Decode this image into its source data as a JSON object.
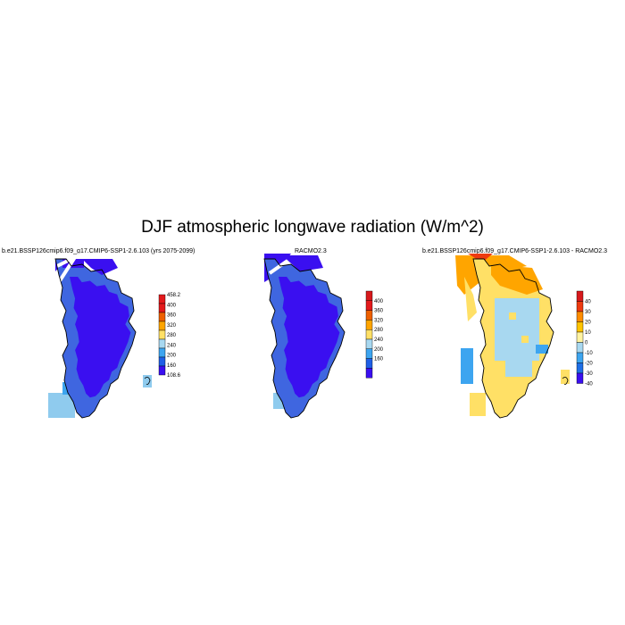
{
  "figure": {
    "title": "DJF atmospheric longwave radiation (W/m^2)"
  },
  "panels": [
    {
      "title": "b.e21.BSSP126cmip6.f09_g17.CMIP6-SSP1-2.6.103 (yrs 2075-2099)",
      "colorbar": {
        "labels": [
          "458.2",
          "400",
          "360",
          "320",
          "280",
          "240",
          "200",
          "160",
          "108.6"
        ],
        "colors": [
          "#e31a1c",
          "#e31a1c",
          "#ee6000",
          "#ffa500",
          "#ffe066",
          "#a8d8f0",
          "#3da5f0",
          "#1f5fe6",
          "#3a0ff0"
        ]
      }
    },
    {
      "title": "RACMO2.3",
      "colorbar": {
        "labels": [
          "400",
          "360",
          "320",
          "280",
          "240",
          "200",
          "160"
        ],
        "colors": [
          "#d7191c",
          "#e31a1c",
          "#ee6000",
          "#ffa500",
          "#ffe066",
          "#a8d8f0",
          "#3da5f0",
          "#1f5fe6",
          "#3a0ff0"
        ]
      }
    },
    {
      "title": "b.e21.BSSP126cmip6.f09_g17.CMIP6-SSP1-2.6.103 - RACMO2.3",
      "colorbar": {
        "labels": [
          "40",
          "30",
          "20",
          "10",
          "0",
          "-10",
          "-20",
          "-30",
          "-40"
        ],
        "colors": [
          "#d7191c",
          "#ee3a10",
          "#ff8c00",
          "#ffc400",
          "#fff3a0",
          "#a8d8f0",
          "#3da5f0",
          "#1f6fe6",
          "#3a0ff0"
        ]
      }
    }
  ],
  "colors": {
    "ice_interior": "#3a0ff0",
    "ice_margin": "#3f66e0",
    "coast_light": "#8fcbee",
    "diff_positive": "#ffe066",
    "diff_strong_positive": "#ffa500",
    "diff_negative": "#a8d8f0"
  }
}
